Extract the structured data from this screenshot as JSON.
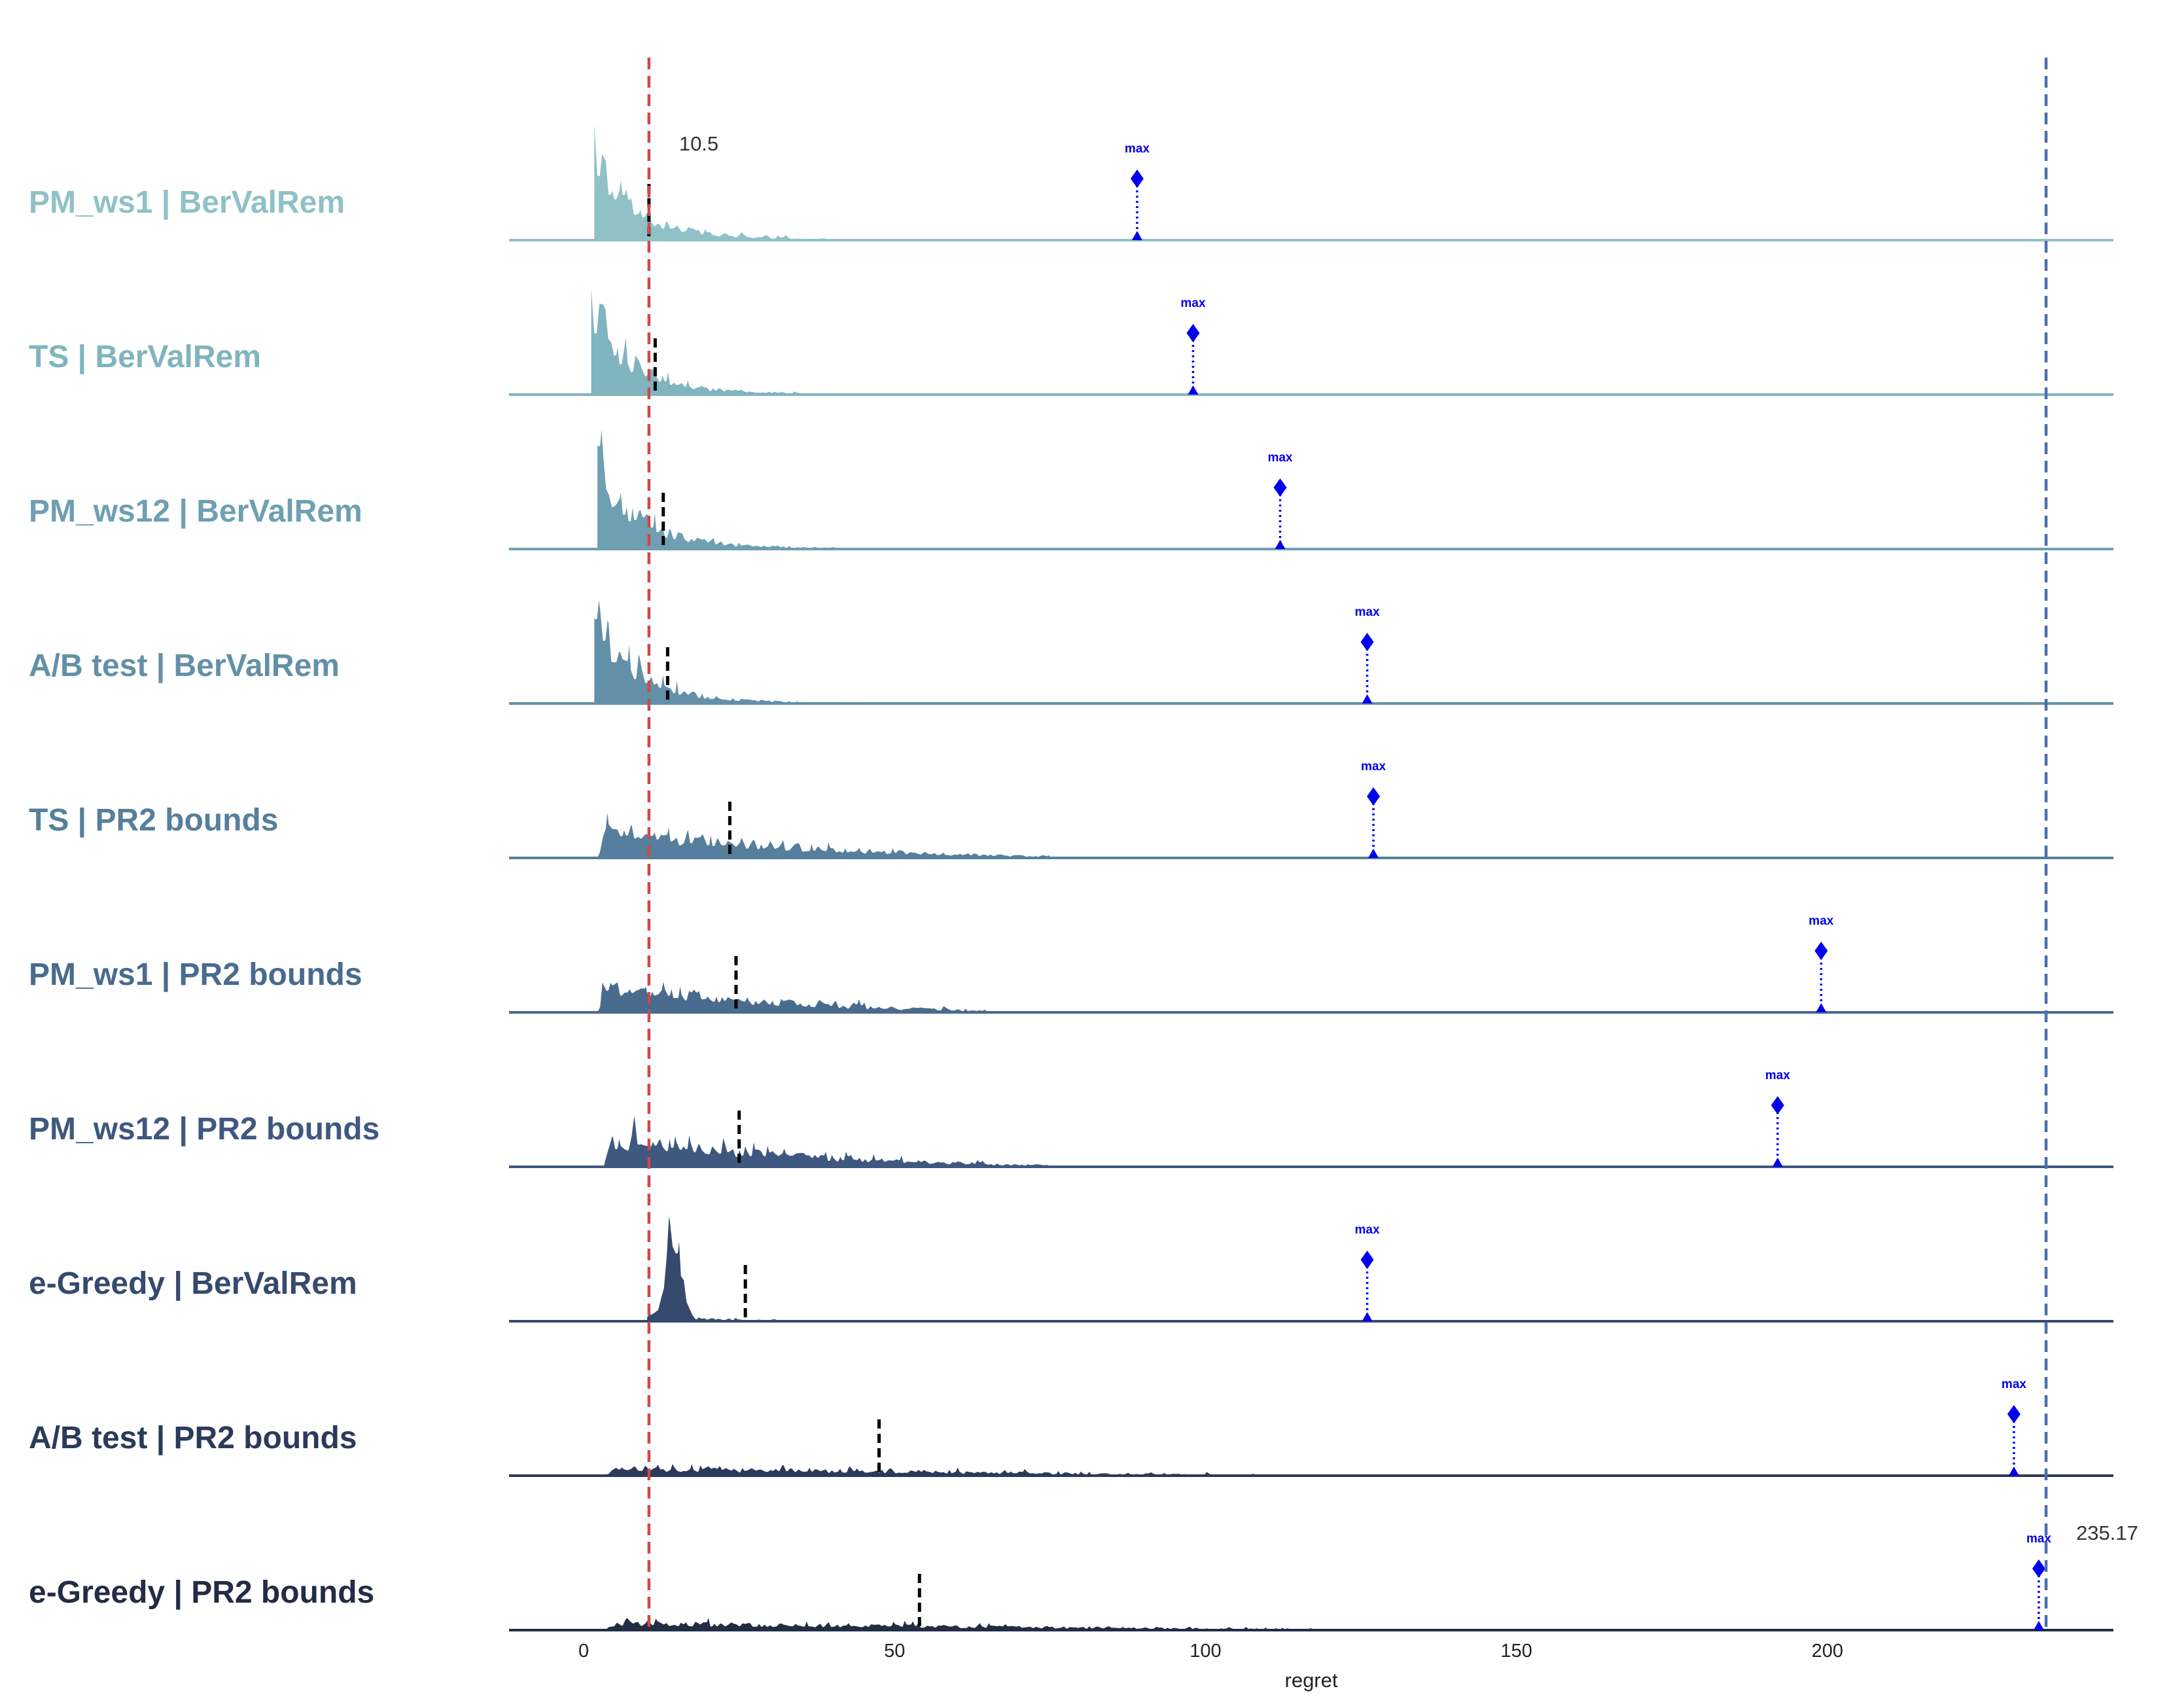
{
  "chart_data": {
    "type": "ridgeline",
    "title": "",
    "xlabel": "regret",
    "ylabel": "",
    "xlim": [
      -12,
      246
    ],
    "xticks": [
      0,
      50,
      100,
      150,
      200
    ],
    "xtick_labels": [
      "0",
      "50",
      "100",
      "150",
      "200"
    ],
    "reference_lines": [
      {
        "name": "best-mean-line",
        "x": 10.5,
        "label": "10.5",
        "color": "#d04848"
      },
      {
        "name": "overall-max-line",
        "x": 235.17,
        "label": "235.17",
        "color": "#4a6fb0"
      }
    ],
    "max_label": "max",
    "series": [
      {
        "name": "PM_ws1 | BerValRem",
        "color": "#8fc1c7",
        "start": 1.5,
        "end": 50,
        "mean": 10.5,
        "max": 89,
        "shape": "spiky-early"
      },
      {
        "name": "TS | BerValRem",
        "color": "#80b4bf",
        "start": 1,
        "end": 70,
        "mean": 11.5,
        "max": 98,
        "shape": "spiky-early"
      },
      {
        "name": "PM_ws12 | BerValRem",
        "color": "#6e9fb2",
        "start": 2,
        "end": 65,
        "mean": 12.8,
        "max": 112,
        "shape": "spiky-early"
      },
      {
        "name": "A/B test | BerValRem",
        "color": "#6390a8",
        "start": 1.5,
        "end": 55,
        "mean": 13.5,
        "max": 126,
        "shape": "spiky-early"
      },
      {
        "name": "TS | PR2 bounds",
        "color": "#557f9c",
        "start": 2,
        "end": 75,
        "mean": 23.5,
        "max": 127,
        "shape": "broad"
      },
      {
        "name": "PM_ws1 | PR2 bounds",
        "color": "#496b8e",
        "start": 2,
        "end": 65,
        "mean": 24.5,
        "max": 199,
        "shape": "broad"
      },
      {
        "name": "PM_ws12 | PR2 bounds",
        "color": "#3e5880",
        "start": 3,
        "end": 75,
        "mean": 25,
        "max": 192,
        "shape": "broad"
      },
      {
        "name": "e-Greedy | BerValRem",
        "color": "#354a6d",
        "start": 10,
        "end": 85,
        "mean": 26,
        "max": 126,
        "shape": "peak"
      },
      {
        "name": "A/B test | PR2 bounds",
        "color": "#2b3a5a",
        "start": 3,
        "end": 115,
        "mean": 47.5,
        "max": 230,
        "shape": "flat"
      },
      {
        "name": "e-Greedy | PR2 bounds",
        "color": "#222c45",
        "start": 3,
        "end": 125,
        "mean": 54,
        "max": 234,
        "shape": "flat"
      }
    ]
  }
}
